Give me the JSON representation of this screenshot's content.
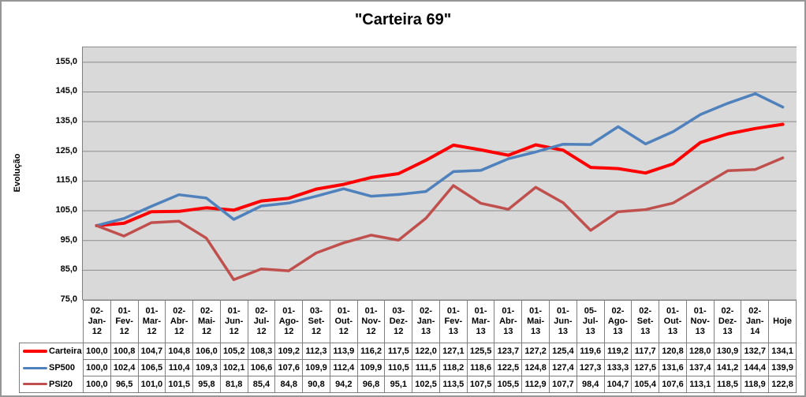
{
  "chart_data": {
    "type": "line",
    "title": "\"Carteira 69\"",
    "ylabel": "Evolução",
    "ylim": [
      75,
      160
    ],
    "ytick_min": 75,
    "ytick_max": 155,
    "ytick_step": 10,
    "decimal_separator": ",",
    "grid": true,
    "plot_bg": "#D9D9D9",
    "gridline_color": "#8C8C8C",
    "axis_line_color": "#7F7F7F",
    "legend_position": "data-table-left",
    "categories": [
      "02-Jan-12",
      "01-Fev-12",
      "01-Mar-12",
      "02-Abr-12",
      "02-Mai-12",
      "01-Jun-12",
      "02-Jul-12",
      "01-Ago-12",
      "03-Set-12",
      "01-Out-12",
      "01-Nov-12",
      "03-Dez-12",
      "02-Jan-13",
      "01-Fev-13",
      "01-Mar-13",
      "01-Abr-13",
      "01-Mai-13",
      "01-Jun-13",
      "05-Jul-13",
      "02-Ago-13",
      "02-Set-13",
      "01-Out-13",
      "01-Nov-13",
      "02-Dez-13",
      "02-Jan-14",
      "Hoje"
    ],
    "series": [
      {
        "name": "Carteira",
        "color": "#FF0000",
        "values": [
          100.0,
          100.8,
          104.7,
          104.8,
          106.0,
          105.2,
          108.3,
          109.2,
          112.3,
          113.9,
          116.2,
          117.5,
          122.0,
          127.1,
          125.5,
          123.7,
          127.2,
          125.4,
          119.6,
          119.2,
          117.7,
          120.8,
          128.0,
          130.9,
          132.7,
          134.1
        ]
      },
      {
        "name": "SP500",
        "color": "#4F81BD",
        "values": [
          100.0,
          102.4,
          106.5,
          110.4,
          109.3,
          102.1,
          106.6,
          107.6,
          109.9,
          112.4,
          109.9,
          110.5,
          111.5,
          118.2,
          118.6,
          122.5,
          124.8,
          127.4,
          127.3,
          133.3,
          127.5,
          131.6,
          137.4,
          141.2,
          144.4,
          139.9
        ]
      },
      {
        "name": "PSI20",
        "color": "#C0504D",
        "values": [
          100.0,
          96.5,
          101.0,
          101.5,
          95.8,
          81.8,
          85.4,
          84.8,
          90.8,
          94.2,
          96.8,
          95.1,
          102.5,
          113.5,
          107.5,
          105.5,
          112.9,
          107.7,
          98.4,
          104.7,
          105.4,
          107.6,
          113.1,
          118.5,
          118.9,
          122.8
        ]
      }
    ]
  }
}
